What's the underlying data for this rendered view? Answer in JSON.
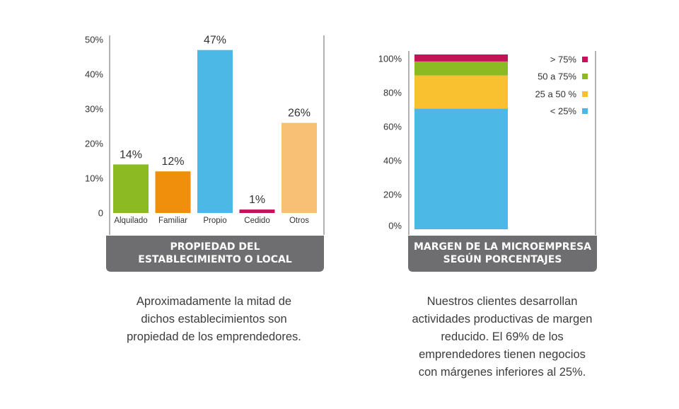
{
  "chart_data": [
    {
      "type": "bar",
      "title": "PROPIEDAD DEL ESTABLECIMIENTO O LOCAL",
      "title_lines": [
        "PROPIEDAD DEL",
        "ESTABLECIMIENTO O LOCAL"
      ],
      "categories": [
        "Alquilado",
        "Familiar",
        "Propio",
        "Cedido",
        "Otros"
      ],
      "values": [
        14,
        12,
        47,
        1,
        26
      ],
      "data_labels": [
        "14%",
        "12%",
        "47%",
        "1%",
        "26%"
      ],
      "colors": [
        "#8cba22",
        "#f08f0b",
        "#4cb8e6",
        "#c6125c",
        "#f7c074"
      ],
      "yticks": [
        "0",
        "10%",
        "20%",
        "30%",
        "40%",
        "50%"
      ],
      "ylim": [
        0,
        50
      ],
      "grid": false
    },
    {
      "type": "bar",
      "stacked": true,
      "title": "MARGEN DE LA MICROEMPRESA SEGÚN PORCENTAJES",
      "title_lines": [
        "MARGEN DE LA MICROEMPRESA",
        "SEGÚN PORCENTAJES"
      ],
      "series": [
        {
          "name": "< 25%",
          "values": [
            69
          ],
          "color": "#4cb8e6"
        },
        {
          "name": "25 a 50 %",
          "values": [
            19
          ],
          "color": "#f9c12f"
        },
        {
          "name": "50 a 75%",
          "values": [
            8
          ],
          "color": "#8cba22"
        },
        {
          "name": "> 75%",
          "values": [
            4
          ],
          "color": "#c6125c"
        }
      ],
      "legend_order": [
        "> 75%",
        "50 a 75%",
        "25 a 50 %",
        "< 25%"
      ],
      "yticks": [
        "0%",
        "20%",
        "40%",
        "60%",
        "80%",
        "100%"
      ],
      "ylim": [
        0,
        100
      ],
      "legend_position": "top-right",
      "grid": false
    }
  ],
  "captions": {
    "left": [
      "Aproximadamente la mitad de",
      "dichos establecimientos son",
      "propiedad de los emprendedores."
    ],
    "right": [
      "Nuestros clientes desarrollan",
      "actividades productivas de margen",
      "reducido. El 69% de los",
      "emprendedores tienen negocios",
      "con márgenes inferiores al 25%."
    ]
  },
  "colors": {
    "banner": "#6e6e70",
    "axis": "#9a9a9a"
  }
}
